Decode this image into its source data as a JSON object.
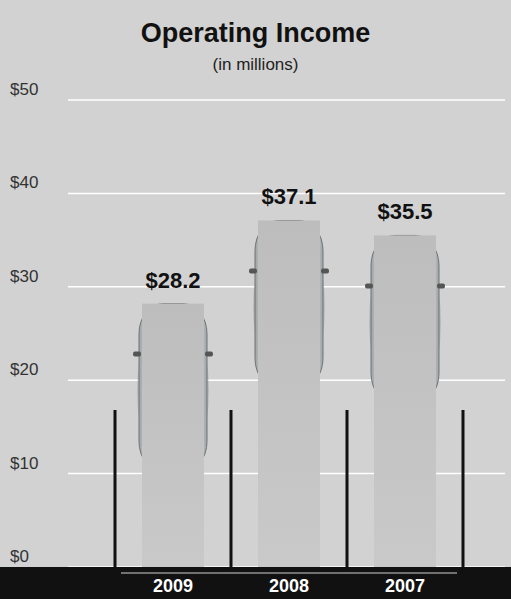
{
  "chart_data": {
    "type": "bar",
    "title": "Operating Income",
    "subtitle": "(in millions)",
    "categories": [
      "2009",
      "2008",
      "2007"
    ],
    "values": [
      28.2,
      37.1,
      35.5
    ],
    "value_labels": [
      "$28.2",
      "$37.1",
      "$35.5"
    ],
    "color": "#bdbdbd",
    "ylim": [
      0,
      50
    ],
    "yticks": [
      {
        "value": 0,
        "label": "$0"
      },
      {
        "value": 10,
        "label": "$10"
      },
      {
        "value": 20,
        "label": "$20"
      },
      {
        "value": 30,
        "label": "$30"
      },
      {
        "value": 40,
        "label": "$40"
      },
      {
        "value": 50,
        "label": "$50"
      }
    ],
    "grid": true,
    "data_labels": true
  }
}
